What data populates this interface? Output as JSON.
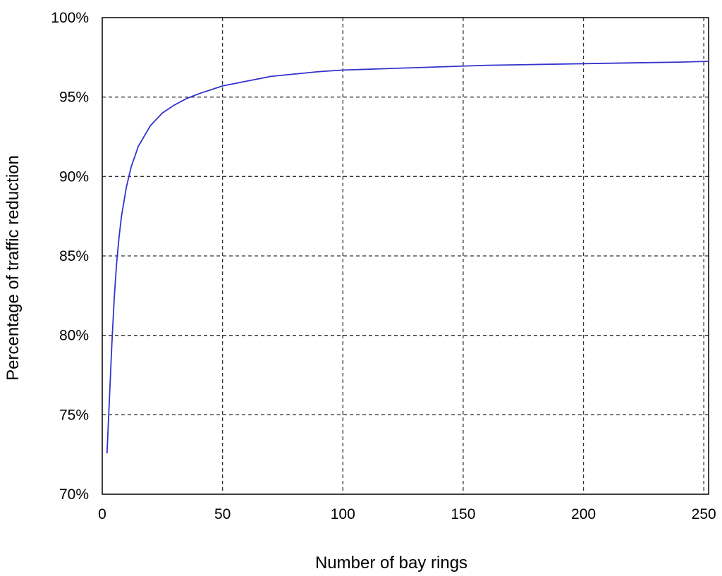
{
  "chart_data": {
    "type": "line",
    "title": "",
    "xlabel": "Number of bay rings",
    "ylabel": "Percentage of traffic reduction",
    "xlim": [
      0,
      252
    ],
    "ylim": [
      70,
      100
    ],
    "x_ticks": [
      {
        "value": 0,
        "label": "0"
      },
      {
        "value": 50,
        "label": "50"
      },
      {
        "value": 100,
        "label": "100"
      },
      {
        "value": 150,
        "label": "150"
      },
      {
        "value": 200,
        "label": "200"
      },
      {
        "value": 250,
        "label": "250"
      }
    ],
    "y_ticks": [
      {
        "value": 70,
        "label": "70%"
      },
      {
        "value": 75,
        "label": "75%"
      },
      {
        "value": 80,
        "label": "80%"
      },
      {
        "value": 85,
        "label": "85%"
      },
      {
        "value": 90,
        "label": "90%"
      },
      {
        "value": 95,
        "label": "95%"
      },
      {
        "value": 100,
        "label": "100%"
      }
    ],
    "grid": true,
    "legend": "none",
    "series": [
      {
        "color": "#3333cc",
        "x": [
          2,
          3,
          4,
          5,
          6,
          7,
          8,
          10,
          12,
          15,
          20,
          25,
          30,
          35,
          40,
          50,
          60,
          70,
          80,
          90,
          100,
          120,
          140,
          160,
          180,
          200,
          220,
          240,
          252
        ],
        "y": [
          72.6,
          76.0,
          79.5,
          82.4,
          84.6,
          86.2,
          87.5,
          89.3,
          90.6,
          91.9,
          93.2,
          94.0,
          94.5,
          94.9,
          95.2,
          95.7,
          96.0,
          96.3,
          96.45,
          96.6,
          96.7,
          96.8,
          96.9,
          97.0,
          97.05,
          97.1,
          97.15,
          97.2,
          97.25
        ]
      }
    ]
  }
}
